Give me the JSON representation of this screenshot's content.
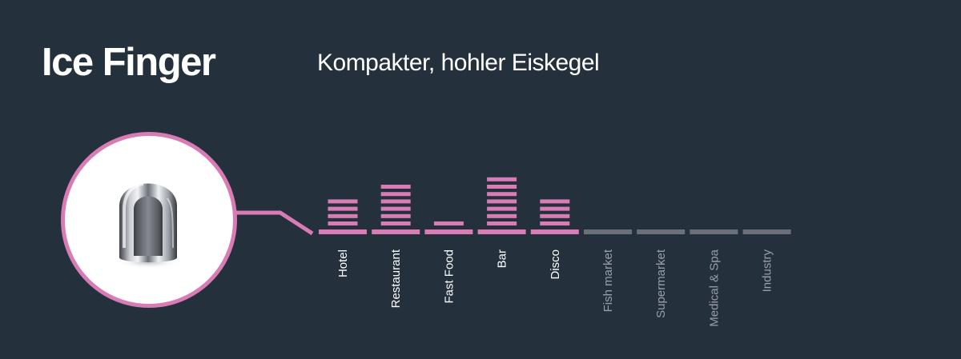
{
  "header": {
    "title": "Ice Finger",
    "subtitle": "Kompakter, hohler Eiskegel"
  },
  "product": {
    "image_label": "ice-finger-cube-image"
  },
  "colors": {
    "background": "#24313d",
    "accent": "#d97bb4",
    "inactive": "#6a6f7a",
    "label_active": "#ffffff",
    "label_inactive": "#9a9ea6"
  },
  "chart_data": {
    "type": "bar",
    "categories": [
      "Hotel",
      "Restaurant",
      "Fast Food",
      "Bar",
      "Disco",
      "Fish market",
      "Supermarket",
      "Medical & Spa",
      "Industry"
    ],
    "values": [
      4,
      6,
      1,
      7,
      4,
      0,
      0,
      0,
      0
    ],
    "active": [
      true,
      true,
      true,
      true,
      true,
      false,
      false,
      false,
      false
    ],
    "ylim": [
      0,
      7
    ],
    "title": "",
    "xlabel": "",
    "ylabel": ""
  }
}
